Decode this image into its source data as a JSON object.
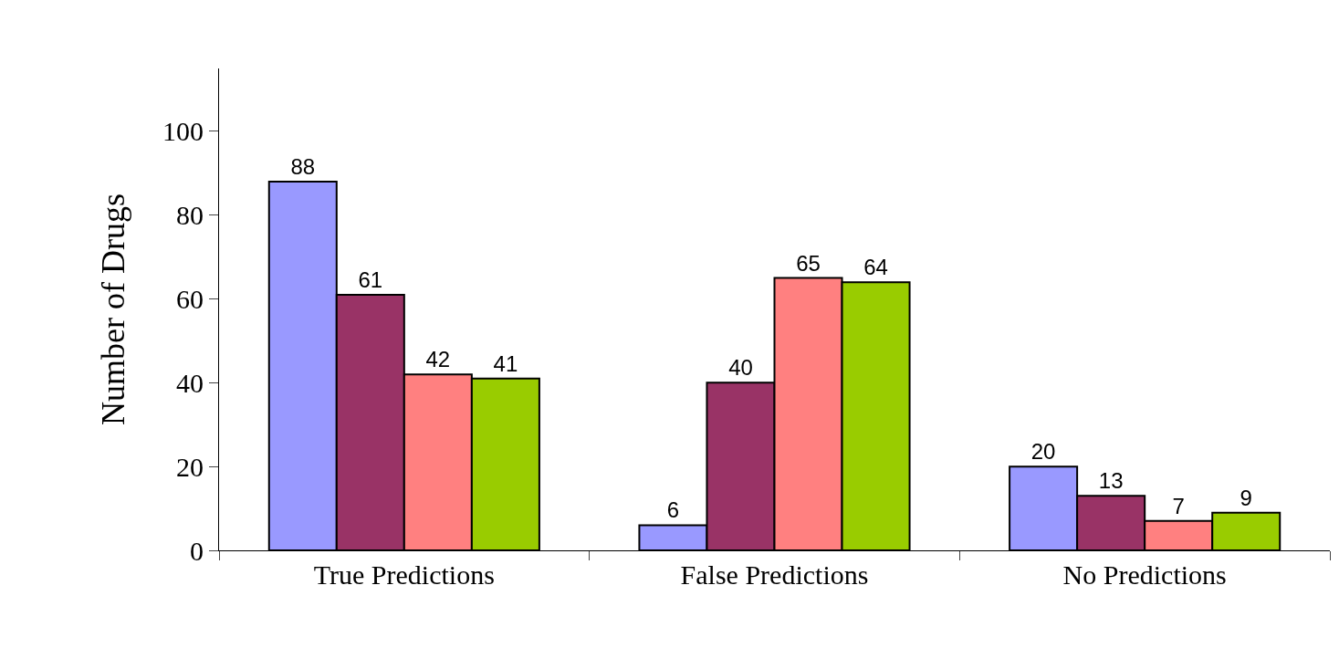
{
  "chart_data": {
    "type": "bar",
    "ylabel": "Number of Drugs",
    "categories": [
      "True Predictions",
      "False Predictions",
      "No Predictions"
    ],
    "series": [
      {
        "color": "#9999ff",
        "values": [
          88,
          6,
          20
        ]
      },
      {
        "color": "#993366",
        "values": [
          61,
          40,
          13
        ]
      },
      {
        "color": "#ff8080",
        "values": [
          42,
          65,
          7
        ]
      },
      {
        "color": "#99cc00",
        "values": [
          41,
          64,
          9
        ]
      }
    ],
    "ylim": [
      0,
      115
    ],
    "yticks": [
      0,
      20,
      40,
      60,
      80,
      100
    ],
    "data_labels": true,
    "grid": false,
    "legend": false
  }
}
